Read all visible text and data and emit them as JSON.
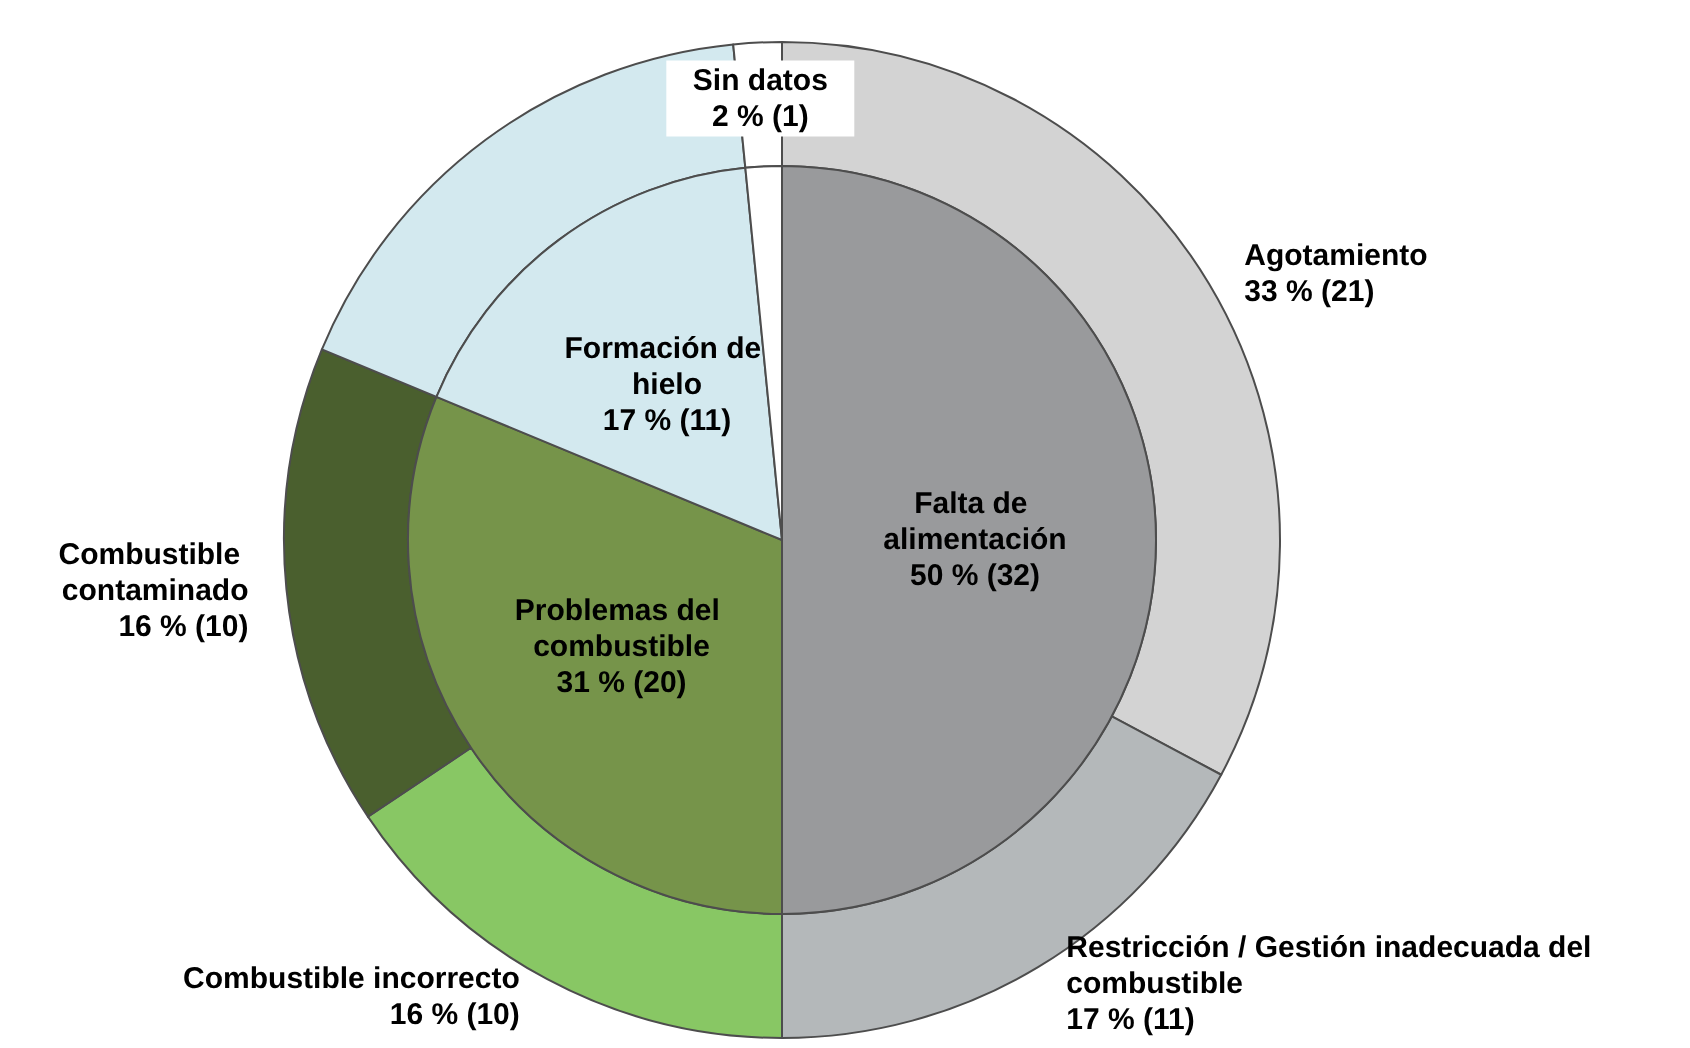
{
  "chart_data": [
    {
      "type": "pie",
      "categories": [
        "Falta de alimentación",
        "Problemas del combustible",
        "Formación de hielo",
        null
      ],
      "values": [
        32,
        20,
        11,
        1
      ],
      "colors": [
        "#999a9c",
        "#76944a",
        "#d3e9ef",
        "#ffffff"
      ],
      "value_labels": [
        "50 % (32)",
        "31 % (20)",
        "17 % (11)",
        null
      ]
    },
    {
      "type": "donut",
      "categories": [
        "Agotamiento",
        "Restricción / Gestión inadecuada del combustible",
        "Combustible incorrecto",
        "Combustible contaminado",
        null,
        "Sin datos"
      ],
      "values": [
        21,
        11,
        10,
        10,
        11,
        1
      ],
      "colors": [
        "#d3d3d3",
        "#b4b8ba",
        "#88c764",
        "#4a5f2e",
        "#d3e9ef",
        "#ffffff"
      ],
      "value_labels": [
        "33 % (21)",
        "17 % (11)",
        "16 % (10)",
        "16 % (10)",
        null,
        "2 % (1)"
      ]
    }
  ]
}
